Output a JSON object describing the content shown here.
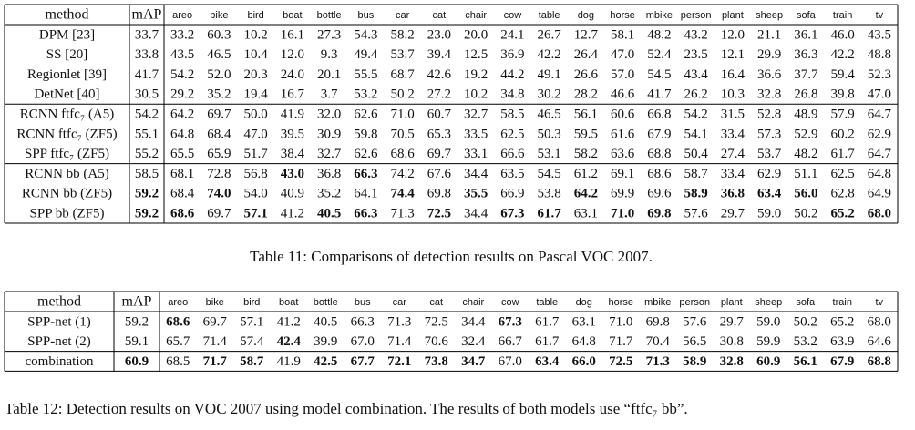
{
  "table_11": {
    "header": [
      "method",
      "mAP",
      "areo",
      "bike",
      "bird",
      "boat",
      "bottle",
      "bus",
      "car",
      "cat",
      "chair",
      "cow",
      "table",
      "dog",
      "horse",
      "mbike",
      "person",
      "plant",
      "sheep",
      "sofa",
      "train",
      "tv"
    ],
    "rows": [
      [
        "DPM [23]",
        "33.7",
        "33.2",
        "60.3",
        "10.2",
        "16.1",
        "27.3",
        "54.3",
        "58.2",
        "23.0",
        "20.0",
        "24.1",
        "26.7",
        "12.7",
        "58.1",
        "48.2",
        "43.2",
        "12.0",
        "21.1",
        "36.1",
        "46.0",
        "43.5"
      ],
      [
        "SS [20]",
        "33.8",
        "43.5",
        "46.5",
        "10.4",
        "12.0",
        "9.3",
        "49.4",
        "53.7",
        "39.4",
        "12.5",
        "36.9",
        "42.2",
        "26.4",
        "47.0",
        "52.4",
        "23.5",
        "12.1",
        "29.9",
        "36.3",
        "42.2",
        "48.8"
      ],
      [
        "Regionlet [39]",
        "41.7",
        "54.2",
        "52.0",
        "20.3",
        "24.0",
        "20.1",
        "55.5",
        "68.7",
        "42.6",
        "19.2",
        "44.2",
        "49.1",
        "26.6",
        "57.0",
        "54.5",
        "43.4",
        "16.4",
        "36.6",
        "37.7",
        "59.4",
        "52.3"
      ],
      [
        "DetNet [40]",
        "30.5",
        "29.2",
        "35.2",
        "19.4",
        "16.7",
        "3.7",
        "53.2",
        "50.2",
        "27.2",
        "10.2",
        "34.8",
        "30.2",
        "28.2",
        "46.6",
        "41.7",
        "26.2",
        "10.3",
        "32.8",
        "26.8",
        "39.8",
        "47.0"
      ],
      [
        "RCNN ftfc₇ (A5)",
        "54.2",
        "64.2",
        "69.7",
        "50.0",
        "41.9",
        "32.0",
        "62.6",
        "71.0",
        "60.7",
        "32.7",
        "58.5",
        "46.5",
        "56.1",
        "60.6",
        "66.8",
        "54.2",
        "31.5",
        "52.8",
        "48.9",
        "57.9",
        "64.7"
      ],
      [
        "RCNN ftfc₇ (ZF5)",
        "55.1",
        "64.8",
        "68.4",
        "47.0",
        "39.5",
        "30.9",
        "59.8",
        "70.5",
        "65.3",
        "33.5",
        "62.5",
        "50.3",
        "59.5",
        "61.6",
        "67.9",
        "54.1",
        "33.4",
        "57.3",
        "52.9",
        "60.2",
        "62.9"
      ],
      [
        "SPP ftfc₇ (ZF5)",
        "55.2",
        "65.5",
        "65.9",
        "51.7",
        "38.4",
        "32.7",
        "62.6",
        "68.6",
        "69.7",
        "33.1",
        "66.6",
        "53.1",
        "58.2",
        "63.6",
        "68.8",
        "50.4",
        "27.4",
        "53.7",
        "48.2",
        "61.7",
        "64.7"
      ],
      [
        "RCNN bb (A5)",
        "58.5",
        "68.1",
        "72.8",
        "56.8",
        "43.0",
        "36.8",
        "66.3",
        "74.2",
        "67.6",
        "34.4",
        "63.5",
        "54.5",
        "61.2",
        "69.1",
        "68.6",
        "58.7",
        "33.4",
        "62.9",
        "51.1",
        "62.5",
        "64.8"
      ],
      [
        "RCNN bb (ZF5)",
        "59.2",
        "68.4",
        "74.0",
        "54.0",
        "40.9",
        "35.2",
        "64.1",
        "74.4",
        "69.8",
        "35.5",
        "66.9",
        "53.8",
        "64.2",
        "69.9",
        "69.6",
        "58.9",
        "36.8",
        "63.4",
        "56.0",
        "62.8",
        "64.9"
      ],
      [
        "SPP bb (ZF5)",
        "59.2",
        "68.6",
        "69.7",
        "57.1",
        "41.2",
        "40.5",
        "66.3",
        "71.3",
        "72.5",
        "34.4",
        "67.3",
        "61.7",
        "63.1",
        "71.0",
        "69.8",
        "57.6",
        "29.7",
        "59.0",
        "50.2",
        "65.2",
        "68.0"
      ]
    ],
    "bold": [
      [
        7,
        5
      ],
      [
        7,
        7
      ],
      [
        8,
        1
      ],
      [
        8,
        3
      ],
      [
        8,
        8
      ],
      [
        8,
        10
      ],
      [
        8,
        13
      ],
      [
        8,
        16
      ],
      [
        8,
        17
      ],
      [
        8,
        18
      ],
      [
        8,
        19
      ],
      [
        9,
        1
      ],
      [
        9,
        2
      ],
      [
        9,
        4
      ],
      [
        9,
        6
      ],
      [
        9,
        7
      ],
      [
        9,
        9
      ],
      [
        9,
        11
      ],
      [
        9,
        12
      ],
      [
        9,
        14
      ],
      [
        9,
        15
      ],
      [
        9,
        20
      ],
      [
        9,
        21
      ]
    ],
    "caption": "Table 11: Comparisons of detection results on Pascal VOC 2007."
  },
  "table_12": {
    "header": [
      "method",
      "mAP",
      "areo",
      "bike",
      "bird",
      "boat",
      "bottle",
      "bus",
      "car",
      "cat",
      "chair",
      "cow",
      "table",
      "dog",
      "horse",
      "mbike",
      "person",
      "plant",
      "sheep",
      "sofa",
      "train",
      "tv"
    ],
    "rows": [
      [
        "SPP-net (1)",
        "59.2",
        "68.6",
        "69.7",
        "57.1",
        "41.2",
        "40.5",
        "66.3",
        "71.3",
        "72.5",
        "34.4",
        "67.3",
        "61.7",
        "63.1",
        "71.0",
        "69.8",
        "57.6",
        "29.7",
        "59.0",
        "50.2",
        "65.2",
        "68.0"
      ],
      [
        "SPP-net (2)",
        "59.1",
        "65.7",
        "71.4",
        "57.4",
        "42.4",
        "39.9",
        "67.0",
        "71.4",
        "70.6",
        "32.4",
        "66.7",
        "61.7",
        "64.8",
        "71.7",
        "70.4",
        "56.5",
        "30.8",
        "59.9",
        "53.2",
        "63.9",
        "64.6"
      ],
      [
        "combination",
        "60.9",
        "68.5",
        "71.7",
        "58.7",
        "41.9",
        "42.5",
        "67.7",
        "72.1",
        "73.8",
        "34.7",
        "67.0",
        "63.4",
        "66.0",
        "72.5",
        "71.3",
        "58.9",
        "32.8",
        "60.9",
        "56.1",
        "67.9",
        "68.8"
      ]
    ],
    "bold": [
      [
        0,
        2
      ],
      [
        0,
        11
      ],
      [
        1,
        5
      ],
      [
        2,
        1
      ],
      [
        2,
        3
      ],
      [
        2,
        4
      ],
      [
        2,
        6
      ],
      [
        2,
        7
      ],
      [
        2,
        8
      ],
      [
        2,
        9
      ],
      [
        2,
        10
      ],
      [
        2,
        12
      ],
      [
        2,
        13
      ],
      [
        2,
        14
      ],
      [
        2,
        15
      ],
      [
        2,
        16
      ],
      [
        2,
        17
      ],
      [
        2,
        18
      ],
      [
        2,
        19
      ],
      [
        2,
        20
      ],
      [
        2,
        21
      ]
    ],
    "caption": "Table 12: Detection results on VOC 2007 using model combination. The results of both models use “ftfc₇ bb”."
  }
}
